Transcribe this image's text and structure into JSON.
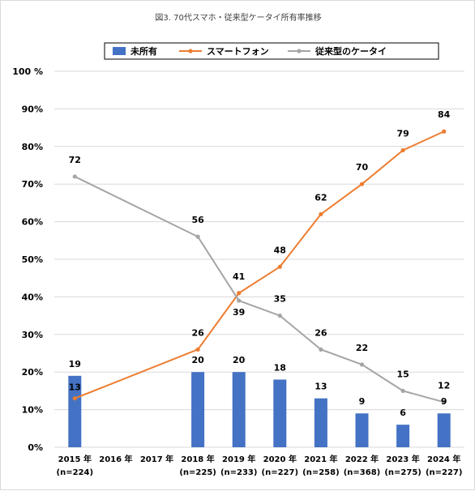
{
  "chart_data": {
    "type": "bar",
    "title": "図3. 70代スマホ・従来型ケータイ所有率推移",
    "categories": [
      "2015 年",
      "2016 年",
      "2017 年",
      "2018 年",
      "2019 年",
      "2020 年",
      "2021 年",
      "2022 年",
      "2023 年",
      "2024 年"
    ],
    "category_notes": [
      "(n=224)",
      "",
      "",
      "(n=225)",
      "(n=233)",
      "(n=227)",
      "(n=258)",
      "(n=368)",
      "(n=275)",
      "(n=227)"
    ],
    "ylim": [
      0,
      100
    ],
    "yticks": [
      "0%",
      "10%",
      "20%",
      "30%",
      "40%",
      "50%",
      "60%",
      "70%",
      "80%",
      "90%",
      "100 %"
    ],
    "grid": true,
    "legend_position": "top",
    "series": [
      {
        "name": "未所有",
        "kind": "bar",
        "color": "#4472c4",
        "values": [
          19,
          null,
          null,
          20,
          20,
          18,
          13,
          9,
          6,
          9
        ],
        "labels": [
          "19",
          null,
          null,
          "20",
          "20",
          "18",
          "13",
          "9",
          "6",
          "9"
        ]
      },
      {
        "name": "スマートフォン",
        "kind": "line",
        "color": "#ed7d31",
        "values": [
          13,
          null,
          null,
          26,
          41,
          48,
          62,
          70,
          79,
          84
        ],
        "labels": [
          "13",
          null,
          null,
          "26",
          "41",
          "48",
          "62",
          "70",
          "79",
          "84"
        ]
      },
      {
        "name": "従来型のケータイ",
        "kind": "line",
        "color": "#a5a5a5",
        "values": [
          72,
          null,
          null,
          56,
          39,
          35,
          26,
          22,
          15,
          12
        ],
        "labels": [
          "72",
          null,
          null,
          "56",
          "39",
          "35",
          "26",
          "22",
          "15",
          "12"
        ]
      }
    ]
  }
}
